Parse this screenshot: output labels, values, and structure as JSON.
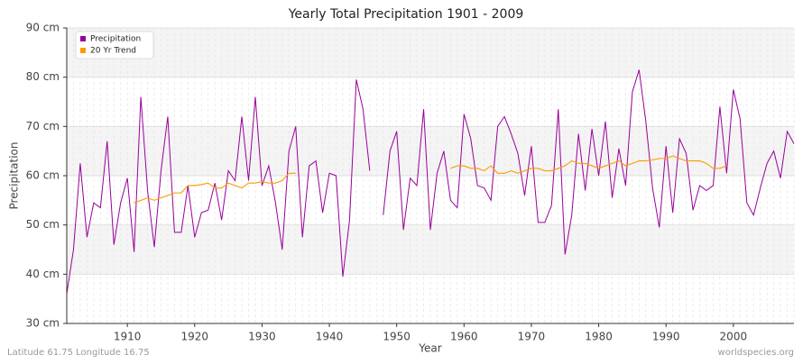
{
  "chart_data": {
    "type": "line",
    "title": "Yearly Total Precipitation 1901 - 2009",
    "x_label": "Year",
    "y_label": "Precipitation",
    "footer_left": "Latitude 61.75 Longitude 16.75",
    "footer_right": "worldspecies.org",
    "legend_position": "upper left",
    "grid": true,
    "xlim": [
      1901,
      2009
    ],
    "xticks": [
      1910,
      1920,
      1930,
      1940,
      1950,
      1960,
      1970,
      1980,
      1990,
      2000
    ],
    "ylim": [
      30,
      90
    ],
    "yticks": [
      {
        "value": 30,
        "label": "30 cm"
      },
      {
        "value": 40,
        "label": "40 cm"
      },
      {
        "value": 50,
        "label": "50 cm"
      },
      {
        "value": 60,
        "label": "60 cm"
      },
      {
        "value": 70,
        "label": "70 cm"
      },
      {
        "value": 80,
        "label": "80 cm"
      },
      {
        "value": 90,
        "label": "90 cm"
      }
    ],
    "x": [
      1901,
      1902,
      1903,
      1904,
      1905,
      1906,
      1907,
      1908,
      1909,
      1910,
      1911,
      1912,
      1913,
      1914,
      1915,
      1916,
      1917,
      1918,
      1919,
      1920,
      1921,
      1922,
      1923,
      1924,
      1925,
      1926,
      1927,
      1928,
      1929,
      1930,
      1931,
      1932,
      1933,
      1934,
      1935,
      1936,
      1937,
      1938,
      1939,
      1940,
      1941,
      1942,
      1943,
      1944,
      1945,
      1946,
      1947,
      1948,
      1949,
      1950,
      1951,
      1952,
      1953,
      1954,
      1955,
      1956,
      1957,
      1958,
      1959,
      1960,
      1961,
      1962,
      1963,
      1964,
      1965,
      1966,
      1967,
      1968,
      1969,
      1970,
      1971,
      1972,
      1973,
      1974,
      1975,
      1976,
      1977,
      1978,
      1979,
      1980,
      1981,
      1982,
      1983,
      1984,
      1985,
      1986,
      1987,
      1988,
      1989,
      1990,
      1991,
      1992,
      1993,
      1994,
      1995,
      1996,
      1997,
      1998,
      1999,
      2000,
      2001,
      2002,
      2003,
      2004,
      2005,
      2006,
      2007,
      2008,
      2009
    ],
    "series": [
      {
        "name": "Precipitation",
        "color": "#990099",
        "values": [
          36,
          45,
          62.5,
          47.5,
          54.5,
          53.5,
          67,
          46,
          54.5,
          59.5,
          44.5,
          76,
          57,
          45.5,
          61,
          72,
          48.5,
          48.5,
          58,
          47.5,
          52.5,
          53,
          58.5,
          51,
          61,
          59,
          72,
          59,
          76,
          58,
          62,
          54.5,
          45,
          65,
          70,
          47.5,
          62,
          63,
          52.5,
          60.5,
          60,
          39.5,
          51,
          79.5,
          73.5,
          61,
          null,
          52,
          65,
          69,
          49,
          59.5,
          58,
          73.5,
          49,
          60.5,
          65,
          55,
          53.5,
          72.5,
          67.5,
          58,
          57.5,
          55,
          70,
          72,
          68.5,
          64.5,
          56,
          66,
          50.5,
          50.5,
          54,
          73.5,
          44,
          52,
          68.5,
          57,
          69.5,
          60,
          71,
          55.5,
          65.5,
          58,
          77,
          81.5,
          71,
          57.5,
          49.5,
          66,
          52.5,
          67.5,
          64.5,
          53,
          58,
          57,
          58,
          74,
          60.5,
          77.5,
          71.5,
          54.5,
          52,
          57.5,
          62.5,
          65,
          59.5,
          69,
          66.5
        ]
      },
      {
        "name": "20 Yr Trend",
        "color": "#ff9900",
        "values": [
          null,
          null,
          null,
          null,
          null,
          null,
          null,
          null,
          null,
          null,
          54.5,
          55,
          55.5,
          55,
          55.5,
          56,
          56.5,
          56.5,
          58,
          58,
          58.2,
          58.5,
          57.5,
          57.5,
          58.5,
          58,
          57.5,
          58.5,
          58.5,
          58.8,
          58.5,
          58.5,
          59,
          60.5,
          60.5,
          null,
          null,
          null,
          null,
          null,
          null,
          null,
          null,
          null,
          null,
          null,
          null,
          null,
          null,
          null,
          null,
          null,
          null,
          null,
          null,
          null,
          null,
          61.5,
          62,
          62,
          61.5,
          61.5,
          61,
          62,
          60.5,
          60.5,
          61,
          60.5,
          61,
          61.5,
          61.5,
          61,
          61,
          61.5,
          62,
          63,
          62.5,
          62.5,
          62,
          61.5,
          62,
          62.5,
          63,
          62,
          62.5,
          63,
          63,
          63.2,
          63.5,
          63.5,
          64,
          63.5,
          63,
          63,
          63,
          62.5,
          61.5,
          61.5,
          62,
          null,
          null,
          null,
          null,
          null,
          null,
          null,
          null,
          null,
          null
        ]
      }
    ]
  }
}
